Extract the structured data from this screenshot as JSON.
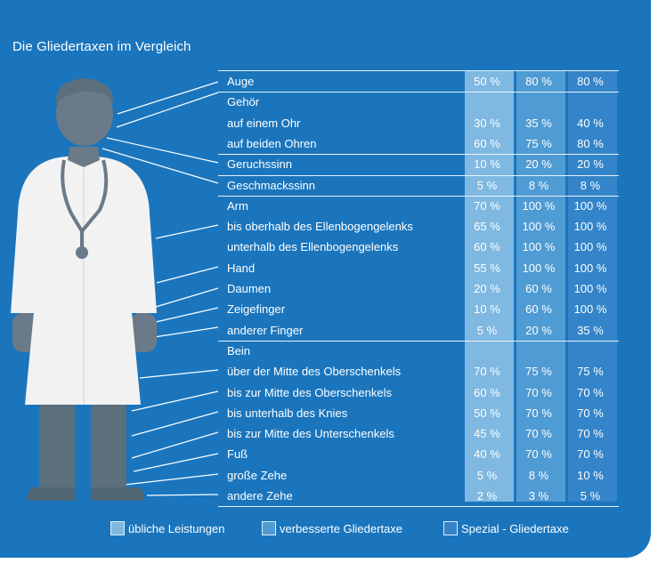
{
  "title": "Die Gliedertaxen im Vergleich",
  "colors": {
    "panel": "#1a75bd",
    "col_ueblich": "#7fb8e1",
    "col_verbessert": "#4f9bd3",
    "col_spezial": "#3384c8",
    "coat": "#f2f2f2",
    "skin": "#6b7a88",
    "trousers": "#5b6f7d"
  },
  "chart_data": {
    "type": "table",
    "title": "Die Gliedertaxen im Vergleich",
    "series": [
      {
        "name": "übliche Leistungen"
      },
      {
        "name": "verbesserte Gliedertaxe"
      },
      {
        "name": "Spezial-Gliedertaxe"
      }
    ],
    "rows": [
      {
        "label": "Auge",
        "values": [
          "50 %",
          "80 %",
          "80 %"
        ]
      },
      {
        "label": "Gehör",
        "values": [
          "",
          "",
          ""
        ]
      },
      {
        "label": "auf einem Ohr",
        "values": [
          "30 %",
          "35 %",
          "40 %"
        ]
      },
      {
        "label": "auf beiden Ohren",
        "values": [
          "60 %",
          "75 %",
          "80 %"
        ]
      },
      {
        "label": "Geruchssinn",
        "values": [
          "10 %",
          "20 %",
          "20 %"
        ]
      },
      {
        "label": "Geschmackssinn",
        "values": [
          "5 %",
          "8 %",
          "8 %"
        ]
      },
      {
        "label": "Arm",
        "values": [
          "70 %",
          "100 %",
          "100 %"
        ]
      },
      {
        "label": "bis oberhalb des Ellenbogengelenks",
        "values": [
          "65 %",
          "100 %",
          "100 %"
        ]
      },
      {
        "label": "unterhalb des Ellenbogengelenks",
        "values": [
          "60 %",
          "100 %",
          "100 %"
        ]
      },
      {
        "label": "Hand",
        "values": [
          "55 %",
          "100 %",
          "100 %"
        ]
      },
      {
        "label": "Daumen",
        "values": [
          "20 %",
          "60 %",
          "100 %"
        ]
      },
      {
        "label": "Zeigefinger",
        "values": [
          "10 %",
          "60 %",
          "100 %"
        ]
      },
      {
        "label": "anderer Finger",
        "values": [
          "5 %",
          "20 %",
          "35 %"
        ]
      },
      {
        "label": "Bein",
        "values": [
          "",
          "",
          ""
        ]
      },
      {
        "label": "über der Mitte des Oberschenkels",
        "values": [
          "70 %",
          "75 %",
          "75 %"
        ]
      },
      {
        "label": "bis zur Mitte des Oberschenkels",
        "values": [
          "60 %",
          "70 %",
          "70 %"
        ]
      },
      {
        "label": "bis unterhalb des Knies",
        "values": [
          "50 %",
          "70 %",
          "70 %"
        ]
      },
      {
        "label": "bis zur Mitte des Unterschenkels",
        "values": [
          "45 %",
          "70 %",
          "70 %"
        ]
      },
      {
        "label": "Fuß",
        "values": [
          "40 %",
          "70 %",
          "70 %"
        ]
      },
      {
        "label": "große Zehe",
        "values": [
          "5 %",
          "8 %",
          "10 %"
        ]
      },
      {
        "label": "andere Zehe",
        "values": [
          "2 %",
          "3 %",
          "5 %"
        ]
      }
    ]
  },
  "legend": [
    {
      "label": "übliche Leistungen"
    },
    {
      "label": "verbesserte Gliedertaxe"
    },
    {
      "label": "Spezial - Gliedertaxe"
    }
  ]
}
